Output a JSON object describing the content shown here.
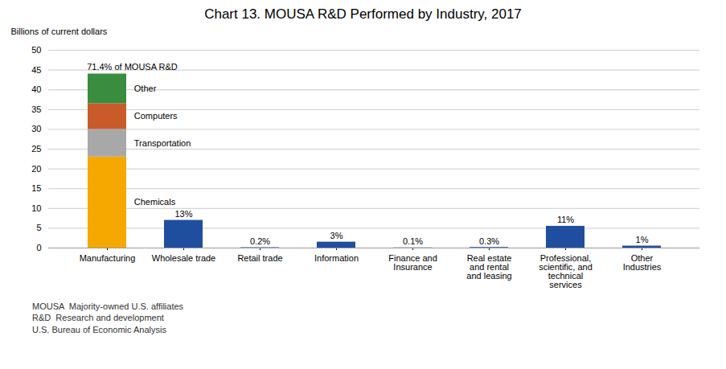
{
  "chart_data": {
    "type": "bar",
    "title": "Chart 13. MOUSA R&D Performed by Industry, 2017",
    "ylabel": "Billions of current dollars",
    "categories": [
      "Manufacturing",
      "Wholesale trade",
      "Retail trade",
      "Information",
      "Finance and\nInsurance",
      "Real estate\nand rental\nand leasing",
      "Professional,\nscientific, and\ntechnical\nservices",
      "Other\nIndustries"
    ],
    "stacked": true,
    "series": [
      {
        "name": "Chemicals",
        "color": "#F5A800",
        "values": [
          23.0,
          null,
          null,
          null,
          null,
          null,
          null,
          null
        ]
      },
      {
        "name": "Transportation",
        "color": "#A8A8A8",
        "values": [
          7.0,
          null,
          null,
          null,
          null,
          null,
          null,
          null
        ]
      },
      {
        "name": "Computers",
        "color": "#C95B2A",
        "values": [
          6.5,
          null,
          null,
          null,
          null,
          null,
          null,
          null
        ]
      },
      {
        "name": "Other",
        "color": "#3A8C3F",
        "values": [
          7.5,
          null,
          null,
          null,
          null,
          null,
          null,
          null
        ]
      },
      {
        "color": "#1F4E9F",
        "values": [
          null,
          7.0,
          0.1,
          1.5,
          0.05,
          0.15,
          5.5,
          0.5
        ],
        "percent_labels": [
          null,
          "13%",
          "0.2%",
          "3%",
          "0.1%",
          "0.3%",
          "11%",
          "1%"
        ]
      }
    ],
    "annotations": [
      "71.4% of MOUSA R&D"
    ],
    "footer": [
      "MOUSA  Majority-owned U.S. affiliates",
      "R&D  Research and development",
      "U.S. Bureau of Economic Analysis"
    ],
    "ylim": [
      0,
      50
    ],
    "yticks": [
      0,
      5,
      10,
      15,
      20,
      25,
      30,
      35,
      40,
      45,
      50
    ],
    "grid": true
  }
}
